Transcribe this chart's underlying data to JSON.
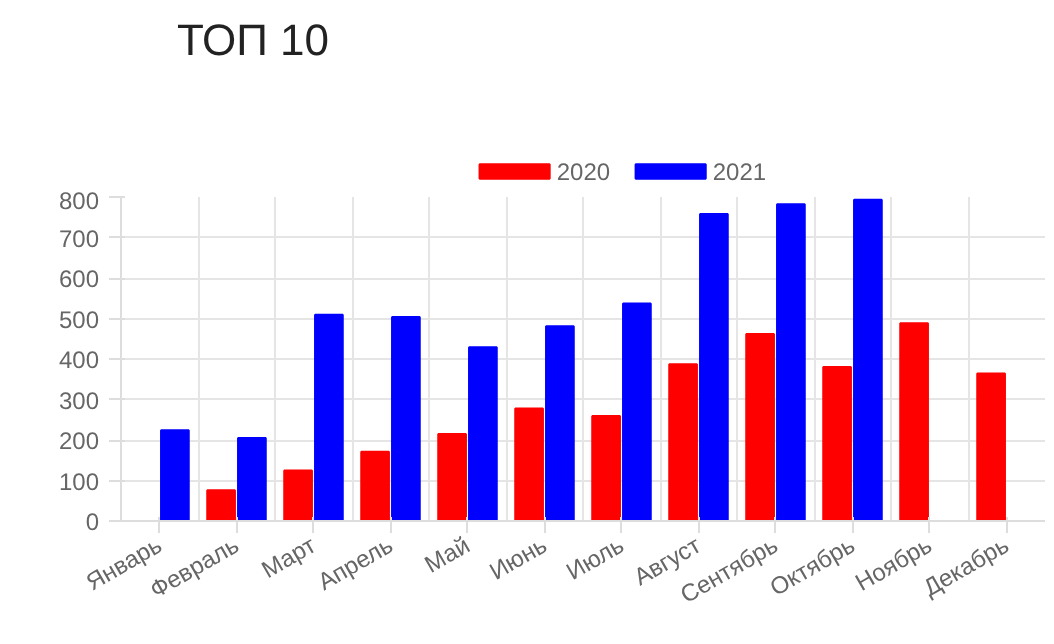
{
  "chart_data": {
    "type": "bar",
    "title": "ТОП 10",
    "categories": [
      "Январь",
      "Февраль",
      "Март",
      "Апрель",
      "Май",
      "Июнь",
      "Июль",
      "Август",
      "Сентябрь",
      "Октябрь",
      "Ноябрь",
      "Декабрь"
    ],
    "series": [
      {
        "name": "2020",
        "color": "#ff0000",
        "values": [
          null,
          76,
          125,
          171,
          215,
          278,
          259,
          387,
          462,
          380,
          488,
          364
        ]
      },
      {
        "name": "2021",
        "color": "#0000ff",
        "values": [
          224,
          205,
          509,
          504,
          429,
          481,
          537,
          758,
          782,
          793,
          null,
          null
        ]
      }
    ],
    "ylim": [
      0,
      800
    ],
    "yticks": [
      0,
      100,
      200,
      300,
      400,
      500,
      600,
      700,
      800
    ],
    "grid": true,
    "legend": "top"
  }
}
